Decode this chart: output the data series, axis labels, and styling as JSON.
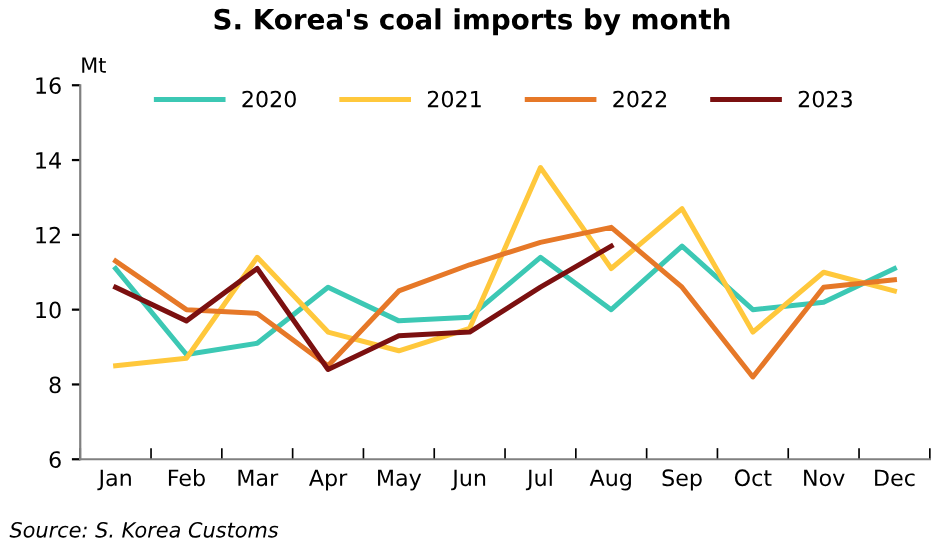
{
  "chart_data": {
    "type": "line",
    "title": "S. Korea's coal imports by month",
    "ylabel": "Mt",
    "categories": [
      "Jan",
      "Feb",
      "Mar",
      "Apr",
      "May",
      "Jun",
      "Jul",
      "Aug",
      "Sep",
      "Oct",
      "Nov",
      "Dec"
    ],
    "series": [
      {
        "name": "2020",
        "color": "#3cc8b4",
        "values": [
          11.1,
          8.8,
          9.1,
          10.6,
          9.7,
          9.8,
          11.4,
          10.0,
          11.7,
          10.0,
          10.2,
          11.1
        ]
      },
      {
        "name": "2021",
        "color": "#ffc83c",
        "values": [
          8.5,
          8.7,
          11.4,
          9.4,
          8.9,
          9.5,
          13.8,
          11.1,
          12.7,
          9.4,
          11.0,
          10.5
        ]
      },
      {
        "name": "2022",
        "color": "#e67828",
        "values": [
          11.3,
          10.0,
          9.9,
          8.5,
          10.5,
          11.2,
          11.8,
          12.2,
          10.6,
          8.2,
          10.6,
          10.8
        ]
      },
      {
        "name": "2023",
        "color": "#7b1010",
        "values": [
          10.6,
          9.7,
          11.1,
          8.4,
          9.3,
          9.4,
          10.6,
          11.7,
          null,
          null,
          null,
          null
        ]
      }
    ],
    "ylim": [
      6,
      16
    ],
    "yticks": [
      6,
      8,
      10,
      12,
      14,
      16
    ],
    "grid": false,
    "legend": "top",
    "marker": "none",
    "line_style": "solid",
    "annotations": [
      "Source: S. Korea Customs"
    ]
  }
}
